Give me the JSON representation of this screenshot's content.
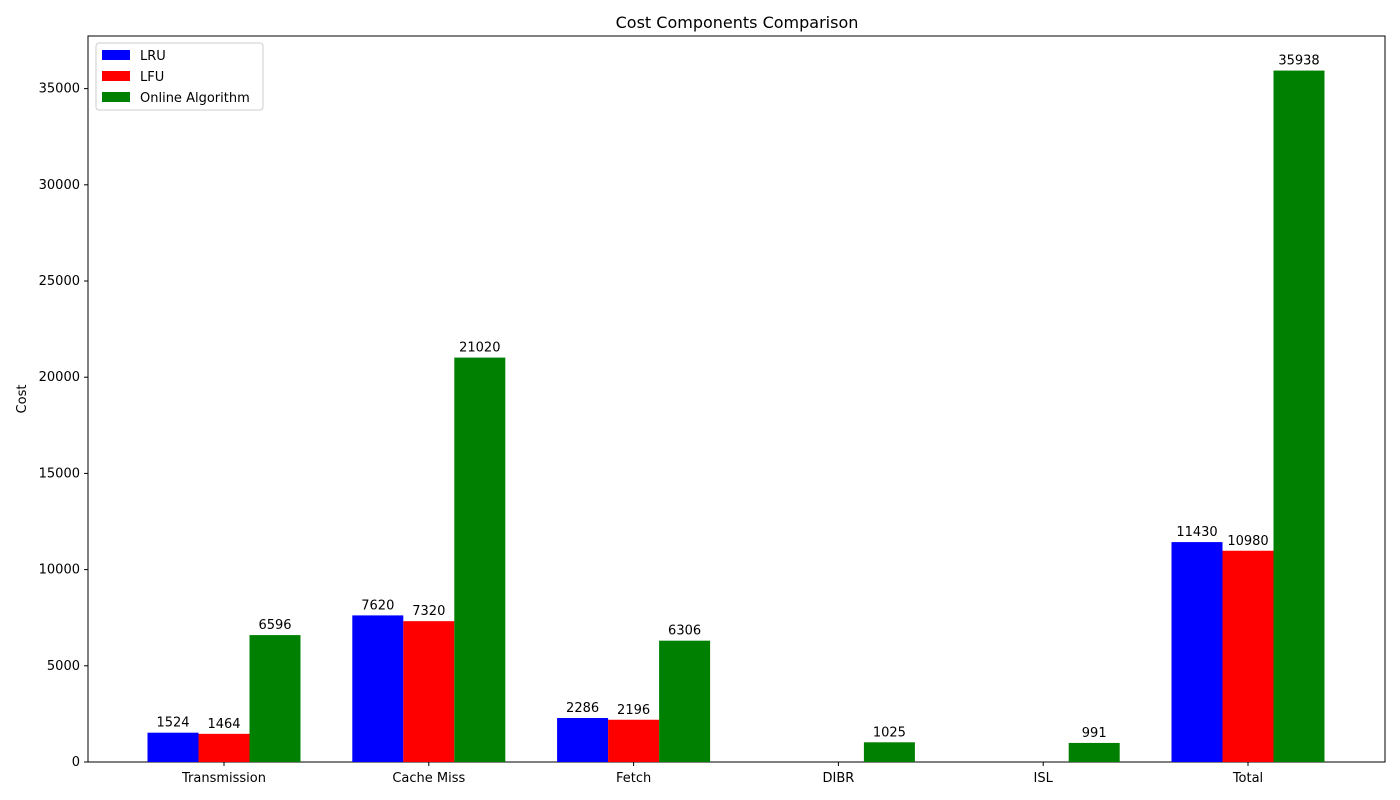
{
  "chart_data": {
    "type": "bar",
    "title": "Cost Components Comparison",
    "xlabel": "",
    "ylabel": "Cost",
    "categories": [
      "Transmission",
      "Cache Miss",
      "Fetch",
      "DIBR",
      "ISL",
      "Total"
    ],
    "series": [
      {
        "name": "LRU",
        "color": "#0000ff",
        "values": [
          1524,
          7620,
          2286,
          0,
          0,
          11430
        ],
        "labels": [
          "1524",
          "7620",
          "2286",
          "",
          "",
          "11430"
        ]
      },
      {
        "name": "LFU",
        "color": "#ff0000",
        "values": [
          1464,
          7320,
          2196,
          0,
          0,
          10980
        ],
        "labels": [
          "1464",
          "7320",
          "2196",
          "",
          "",
          "10980"
        ]
      },
      {
        "name": "Online Algorithm",
        "color": "#008000",
        "values": [
          6596,
          21020,
          6306,
          1025,
          991,
          35938
        ],
        "labels": [
          "6596",
          "21020",
          "6306",
          "1025",
          "991",
          "35938"
        ]
      }
    ],
    "yticks": [
      0,
      5000,
      10000,
      15000,
      20000,
      25000,
      30000,
      35000
    ],
    "ylim": [
      0,
      37735
    ],
    "grid": false,
    "legend_position": "top-left"
  }
}
